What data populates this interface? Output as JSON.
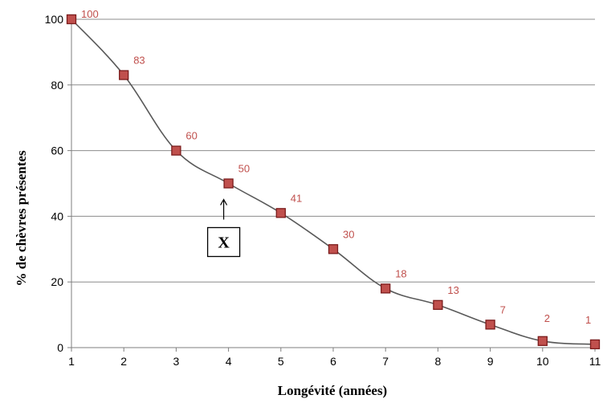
{
  "chart_data": {
    "type": "line",
    "x": [
      1,
      2,
      3,
      4,
      5,
      6,
      7,
      8,
      9,
      10,
      11
    ],
    "series": [
      {
        "values": [
          100,
          83,
          60,
          50,
          41,
          30,
          18,
          13,
          7,
          2,
          1
        ]
      }
    ],
    "data_labels": [
      "100",
      "83",
      "60",
      "50",
      "41",
      "30",
      "18",
      "13",
      "7",
      "2",
      "1"
    ],
    "x_ticks": [
      "1",
      "2",
      "3",
      "4",
      "5",
      "6",
      "7",
      "8",
      "9",
      "10",
      "11"
    ],
    "y_ticks": [
      "0",
      "20",
      "40",
      "60",
      "80",
      "100"
    ],
    "xlabel": "Longévité  (années)",
    "ylabel": "%  de  chèvres  présentes",
    "xlim": [
      1,
      11
    ],
    "ylim": [
      0,
      100
    ],
    "grid": "horizontal",
    "line_smooth": true,
    "annotation": {
      "text": "X",
      "x": 4
    },
    "colors": {
      "line": "#595959",
      "marker_fill": "#c0504d",
      "marker_stroke": "#7b1c1c",
      "data_label": "#c0504d",
      "grid": "#8c8c8c"
    }
  }
}
